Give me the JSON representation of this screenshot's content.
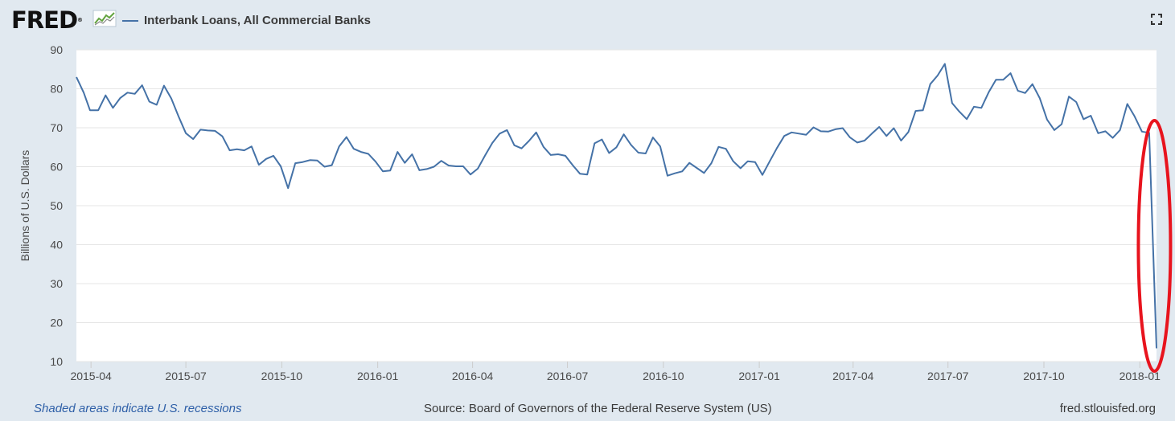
{
  "header": {
    "logo_text": "FRED",
    "logo_registered": "®",
    "series_title": "Interbank Loans, All Commercial Banks",
    "series_color": "#4572a7"
  },
  "icons": {
    "logo_mark": "fred-graph-logo-icon",
    "expand": "fullscreen-expand-icon"
  },
  "chart_data": {
    "type": "line",
    "title": "",
    "xlabel": "",
    "ylabel": "Billions of U.S. Dollars",
    "ylim": [
      10,
      90
    ],
    "yticks": [
      10,
      20,
      30,
      40,
      50,
      60,
      70,
      80,
      90
    ],
    "xlim": [
      "2015-03-18",
      "2018-01-17"
    ],
    "xticks": [
      {
        "date": "2015-04-01",
        "label": "2015-04"
      },
      {
        "date": "2015-07-01",
        "label": "2015-07"
      },
      {
        "date": "2015-10-01",
        "label": "2015-10"
      },
      {
        "date": "2016-01-01",
        "label": "2016-01"
      },
      {
        "date": "2016-04-01",
        "label": "2016-04"
      },
      {
        "date": "2016-07-01",
        "label": "2016-07"
      },
      {
        "date": "2016-10-01",
        "label": "2016-10"
      },
      {
        "date": "2017-01-01",
        "label": "2017-01"
      },
      {
        "date": "2017-04-01",
        "label": "2017-04"
      },
      {
        "date": "2017-07-01",
        "label": "2017-07"
      },
      {
        "date": "2017-10-01",
        "label": "2017-10"
      },
      {
        "date": "2018-01-01",
        "label": "2018-01"
      }
    ],
    "grid": true,
    "series": [
      {
        "name": "Interbank Loans, All Commercial Banks",
        "color": "#4572a7",
        "points": [
          [
            "2015-03-18",
            83.0
          ],
          [
            "2015-03-25",
            79.0
          ],
          [
            "2015-03-31",
            74.5
          ],
          [
            "2015-04-08",
            74.5
          ],
          [
            "2015-04-15",
            78.3
          ],
          [
            "2015-04-22",
            75.1
          ],
          [
            "2015-04-29",
            77.6
          ],
          [
            "2015-05-06",
            79.0
          ],
          [
            "2015-05-13",
            78.7
          ],
          [
            "2015-05-20",
            80.9
          ],
          [
            "2015-05-27",
            76.7
          ],
          [
            "2015-06-03",
            75.9
          ],
          [
            "2015-06-10",
            80.8
          ],
          [
            "2015-06-17",
            77.5
          ],
          [
            "2015-06-24",
            72.9
          ],
          [
            "2015-07-01",
            68.6
          ],
          [
            "2015-07-08",
            67.1
          ],
          [
            "2015-07-15",
            69.5
          ],
          [
            "2015-07-22",
            69.3
          ],
          [
            "2015-07-29",
            69.2
          ],
          [
            "2015-08-05",
            67.8
          ],
          [
            "2015-08-12",
            64.2
          ],
          [
            "2015-08-19",
            64.5
          ],
          [
            "2015-08-26",
            64.2
          ],
          [
            "2015-09-02",
            65.2
          ],
          [
            "2015-09-09",
            60.5
          ],
          [
            "2015-09-16",
            62.0
          ],
          [
            "2015-09-23",
            62.8
          ],
          [
            "2015-09-30",
            60.1
          ],
          [
            "2015-10-07",
            54.5
          ],
          [
            "2015-10-14",
            60.9
          ],
          [
            "2015-10-21",
            61.2
          ],
          [
            "2015-10-28",
            61.7
          ],
          [
            "2015-11-04",
            61.6
          ],
          [
            "2015-11-11",
            60.0
          ],
          [
            "2015-11-18",
            60.4
          ],
          [
            "2015-11-25",
            65.2
          ],
          [
            "2015-12-02",
            67.6
          ],
          [
            "2015-12-09",
            64.6
          ],
          [
            "2015-12-16",
            63.8
          ],
          [
            "2015-12-23",
            63.3
          ],
          [
            "2015-12-30",
            61.3
          ],
          [
            "2016-01-06",
            58.8
          ],
          [
            "2016-01-13",
            59.0
          ],
          [
            "2016-01-20",
            63.8
          ],
          [
            "2016-01-27",
            61.0
          ],
          [
            "2016-02-03",
            63.2
          ],
          [
            "2016-02-10",
            59.1
          ],
          [
            "2016-02-17",
            59.4
          ],
          [
            "2016-02-24",
            60.0
          ],
          [
            "2016-03-02",
            61.5
          ],
          [
            "2016-03-09",
            60.3
          ],
          [
            "2016-03-16",
            60.1
          ],
          [
            "2016-03-23",
            60.1
          ],
          [
            "2016-03-30",
            58.0
          ],
          [
            "2016-04-06",
            59.5
          ],
          [
            "2016-04-13",
            62.9
          ],
          [
            "2016-04-20",
            66.1
          ],
          [
            "2016-04-27",
            68.5
          ],
          [
            "2016-05-04",
            69.4
          ],
          [
            "2016-05-11",
            65.5
          ],
          [
            "2016-05-18",
            64.7
          ],
          [
            "2016-05-25",
            66.6
          ],
          [
            "2016-06-01",
            68.8
          ],
          [
            "2016-06-08",
            65.1
          ],
          [
            "2016-06-15",
            63.0
          ],
          [
            "2016-06-22",
            63.2
          ],
          [
            "2016-06-29",
            62.8
          ],
          [
            "2016-07-06",
            60.4
          ],
          [
            "2016-07-13",
            58.2
          ],
          [
            "2016-07-20",
            58.0
          ],
          [
            "2016-07-27",
            66.0
          ],
          [
            "2016-08-03",
            67.0
          ],
          [
            "2016-08-10",
            63.5
          ],
          [
            "2016-08-17",
            65.0
          ],
          [
            "2016-08-24",
            68.3
          ],
          [
            "2016-08-31",
            65.6
          ],
          [
            "2016-09-07",
            63.6
          ],
          [
            "2016-09-14",
            63.4
          ],
          [
            "2016-09-21",
            67.5
          ],
          [
            "2016-09-28",
            65.2
          ],
          [
            "2016-10-05",
            57.7
          ],
          [
            "2016-10-12",
            58.3
          ],
          [
            "2016-10-19",
            58.8
          ],
          [
            "2016-10-26",
            61.0
          ],
          [
            "2016-11-02",
            59.7
          ],
          [
            "2016-11-09",
            58.4
          ],
          [
            "2016-11-16",
            60.9
          ],
          [
            "2016-11-23",
            65.1
          ],
          [
            "2016-11-30",
            64.6
          ],
          [
            "2016-12-07",
            61.4
          ],
          [
            "2016-12-14",
            59.6
          ],
          [
            "2016-12-21",
            61.4
          ],
          [
            "2016-12-28",
            61.2
          ],
          [
            "2017-01-04",
            57.9
          ],
          [
            "2017-01-11",
            61.4
          ],
          [
            "2017-01-18",
            64.8
          ],
          [
            "2017-01-25",
            67.9
          ],
          [
            "2017-02-01",
            68.8
          ],
          [
            "2017-02-08",
            68.5
          ],
          [
            "2017-02-15",
            68.2
          ],
          [
            "2017-02-22",
            70.1
          ],
          [
            "2017-03-01",
            69.1
          ],
          [
            "2017-03-08",
            69.0
          ],
          [
            "2017-03-15",
            69.6
          ],
          [
            "2017-03-22",
            69.9
          ],
          [
            "2017-03-29",
            67.5
          ],
          [
            "2017-04-05",
            66.2
          ],
          [
            "2017-04-12",
            66.7
          ],
          [
            "2017-04-19",
            68.5
          ],
          [
            "2017-04-26",
            70.2
          ],
          [
            "2017-05-03",
            67.9
          ],
          [
            "2017-05-10",
            69.9
          ],
          [
            "2017-05-17",
            66.7
          ],
          [
            "2017-05-24",
            68.9
          ],
          [
            "2017-05-31",
            74.3
          ],
          [
            "2017-06-07",
            74.5
          ],
          [
            "2017-06-14",
            81.2
          ],
          [
            "2017-06-21",
            83.4
          ],
          [
            "2017-06-28",
            86.4
          ],
          [
            "2017-07-05",
            76.3
          ],
          [
            "2017-07-12",
            74.1
          ],
          [
            "2017-07-19",
            72.2
          ],
          [
            "2017-07-26",
            75.4
          ],
          [
            "2017-08-02",
            75.1
          ],
          [
            "2017-08-09",
            79.1
          ],
          [
            "2017-08-16",
            82.3
          ],
          [
            "2017-08-23",
            82.3
          ],
          [
            "2017-08-30",
            84.0
          ],
          [
            "2017-09-06",
            79.5
          ],
          [
            "2017-09-13",
            78.9
          ],
          [
            "2017-09-20",
            81.2
          ],
          [
            "2017-09-27",
            77.6
          ],
          [
            "2017-10-04",
            72.1
          ],
          [
            "2017-10-11",
            69.4
          ],
          [
            "2017-10-18",
            70.9
          ],
          [
            "2017-10-25",
            78.0
          ],
          [
            "2017-11-01",
            76.6
          ],
          [
            "2017-11-08",
            72.2
          ],
          [
            "2017-11-15",
            73.1
          ],
          [
            "2017-11-22",
            68.6
          ],
          [
            "2017-11-29",
            69.1
          ],
          [
            "2017-12-06",
            67.4
          ],
          [
            "2017-12-13",
            69.4
          ],
          [
            "2017-12-20",
            76.1
          ],
          [
            "2017-12-27",
            72.9
          ],
          [
            "2018-01-03",
            69.0
          ],
          [
            "2018-01-10",
            68.7
          ],
          [
            "2018-01-17",
            13.4
          ]
        ]
      }
    ],
    "annotation": {
      "shape": "ellipse",
      "color": "#e8141e",
      "around": [
        "2018-01-10",
        "2018-01-17"
      ]
    }
  },
  "footer": {
    "recessions_note": "Shaded areas indicate U.S. recessions",
    "source": "Source: Board of Governors of the Federal Reserve System (US)",
    "site": "fred.stlouisfed.org"
  }
}
